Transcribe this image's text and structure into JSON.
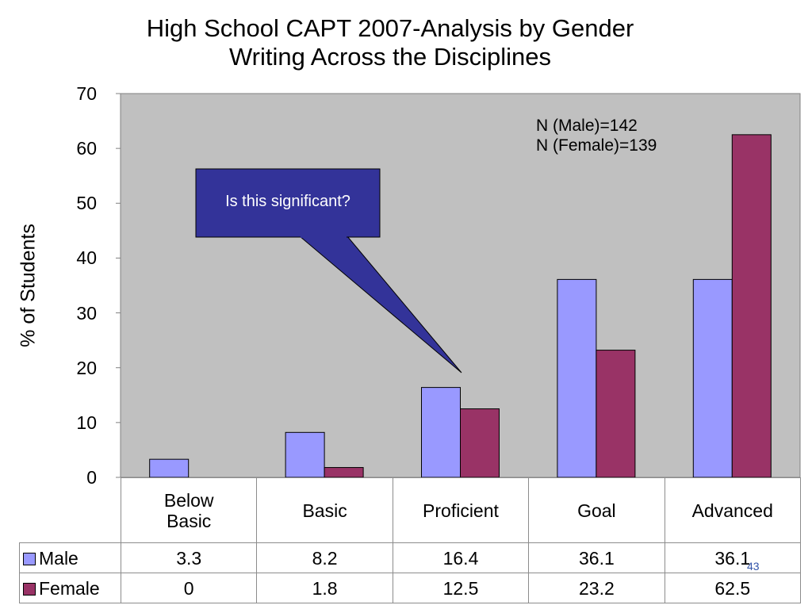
{
  "title_line1": "High School CAPT 2007-Analysis by Gender",
  "title_line2": "Writing Across the Disciplines",
  "annotation": {
    "n_male": "N (Male)=142",
    "n_female": "N (Female)=139"
  },
  "callout": {
    "text": "Is this significant?",
    "fill_color": "#333399"
  },
  "page_number": "43",
  "chart_data": {
    "type": "bar",
    "categories": [
      "Below Basic",
      "Basic",
      "Proficient",
      "Goal",
      "Advanced"
    ],
    "category_lines": [
      [
        "Below",
        "Basic"
      ],
      [
        "Basic"
      ],
      [
        "Proficient"
      ],
      [
        "Goal"
      ],
      [
        "Advanced"
      ]
    ],
    "series": [
      {
        "name": "Male",
        "color": "#9999ff",
        "values": [
          3.3,
          8.2,
          16.4,
          36.1,
          36.1
        ],
        "labels": [
          "3.3",
          "8.2",
          "16.4",
          "36.1",
          "36.1"
        ]
      },
      {
        "name": "Female",
        "color": "#993366",
        "values": [
          0,
          1.8,
          12.5,
          23.2,
          62.5
        ],
        "labels": [
          "0",
          "1.8",
          "12.5",
          "23.2",
          "62.5"
        ]
      }
    ],
    "ylabel": "% of Students",
    "ylim": [
      0,
      70
    ],
    "yticks": [
      0,
      10,
      20,
      30,
      40,
      50,
      60,
      70
    ],
    "grid": false,
    "plot_background": "#c0c0c0",
    "legend": "data-table"
  }
}
